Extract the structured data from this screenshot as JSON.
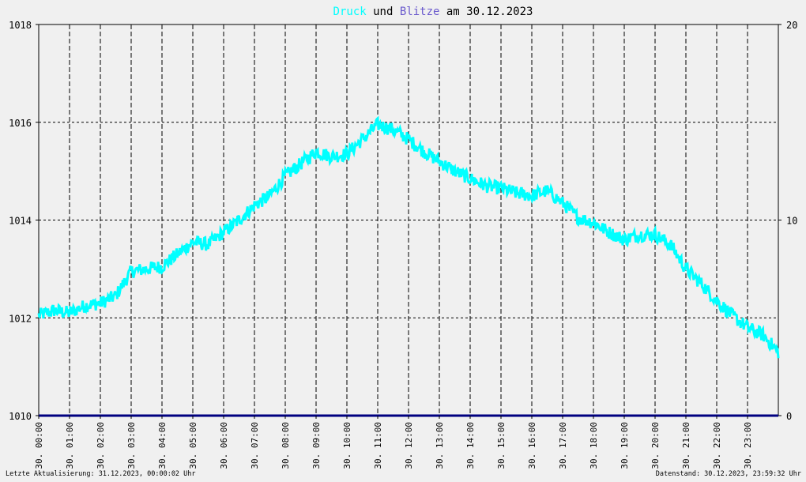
{
  "title": {
    "part1": "Druck",
    "part2": " und ",
    "part3": "Blitze",
    "part4": " am 30.12.2023"
  },
  "footer": {
    "left": "Letzte Aktualisierung: 31.12.2023, 00:00:02 Uhr",
    "right": "Datenstand: 30.12.2023, 23:59:32 Uhr"
  },
  "colors": {
    "pressure": "#00ffff",
    "lightning": "#6a5acd",
    "baseline": "#000080",
    "grid": "#000000",
    "background": "#f0f0f0"
  },
  "chart_data": {
    "type": "line",
    "grid": true,
    "x_tick_labels": [
      "30. 00:00",
      "30. 01:00",
      "30. 02:00",
      "30. 03:00",
      "30. 04:00",
      "30. 05:00",
      "30. 06:00",
      "30. 07:00",
      "30. 08:00",
      "30. 09:00",
      "30. 10:00",
      "30. 11:00",
      "30. 12:00",
      "30. 13:00",
      "30. 14:00",
      "30. 15:00",
      "30. 16:00",
      "30. 17:00",
      "30. 18:00",
      "30. 19:00",
      "30. 20:00",
      "30. 21:00",
      "30. 22:00",
      "30. 23:00"
    ],
    "y_left": {
      "min": 1010,
      "max": 1018,
      "ticks": [
        "1010",
        "1012",
        "1014",
        "1016",
        "1018"
      ]
    },
    "y_right": {
      "min": 0,
      "max": 20,
      "ticks": [
        "0",
        "10",
        "20"
      ]
    },
    "series": [
      {
        "name": "Druck",
        "axis": "left",
        "x_hours": [
          0,
          0.5,
          1,
          1.5,
          2,
          2.5,
          3,
          3.5,
          4,
          4.5,
          5,
          5.5,
          6,
          6.5,
          7,
          7.5,
          8,
          8.5,
          9,
          9.5,
          10,
          10.5,
          11,
          11.5,
          12,
          12.5,
          13,
          13.5,
          14,
          14.5,
          15,
          15.5,
          16,
          16.5,
          17,
          17.5,
          18,
          18.5,
          19,
          19.5,
          20,
          20.5,
          21,
          21.5,
          22,
          22.5,
          23,
          23.5,
          24
        ],
        "values": [
          1012.05,
          1012.15,
          1012.1,
          1012.25,
          1012.3,
          1012.45,
          1012.95,
          1013.0,
          1013.05,
          1013.3,
          1013.55,
          1013.5,
          1013.75,
          1014.0,
          1014.3,
          1014.5,
          1014.9,
          1015.15,
          1015.4,
          1015.3,
          1015.35,
          1015.65,
          1015.95,
          1015.85,
          1015.65,
          1015.4,
          1015.2,
          1015.0,
          1014.85,
          1014.7,
          1014.65,
          1014.55,
          1014.5,
          1014.6,
          1014.35,
          1014.05,
          1013.95,
          1013.75,
          1013.6,
          1013.7,
          1013.7,
          1013.5,
          1013.0,
          1012.7,
          1012.35,
          1012.05,
          1011.8,
          1011.65,
          1011.3
        ]
      },
      {
        "name": "Blitze",
        "axis": "right",
        "x_hours": [
          0,
          24
        ],
        "values": [
          0,
          0
        ]
      }
    ]
  }
}
